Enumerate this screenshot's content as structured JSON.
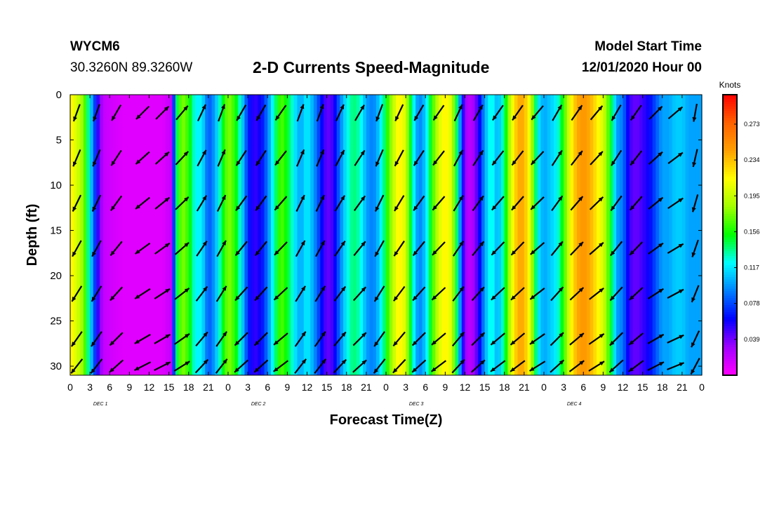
{
  "header": {
    "station_id": "WYCM6",
    "coordinates": "30.3260N 89.3260W",
    "title": "2-D Currents Speed-Magnitude",
    "model_start_label": "Model Start Time",
    "model_start_value": "12/01/2020 Hour 00"
  },
  "chart_data": {
    "type": "heatmap",
    "title": "2-D Currents Speed-Magnitude",
    "xlabel": "Forecast Time(Z)",
    "ylabel": "Depth (ft)",
    "colorbar_label": "Knots",
    "x_tick_labels": [
      "0",
      "3",
      "6",
      "9",
      "12",
      "15",
      "18",
      "21",
      "0",
      "3",
      "6",
      "9",
      "12",
      "15",
      "18",
      "21",
      "0",
      "3",
      "6",
      "9",
      "12",
      "15",
      "18",
      "21",
      "0",
      "3",
      "6",
      "9",
      "12",
      "15",
      "18",
      "21",
      "0"
    ],
    "day_labels": [
      "DEC 1",
      "DEC 2",
      "DEC 3",
      "DEC 4"
    ],
    "y_tick_labels": [
      "0",
      "5",
      "10",
      "15",
      "20",
      "25",
      "30"
    ],
    "y_tick_values": [
      0,
      5,
      10,
      15,
      20,
      25,
      30
    ],
    "ylim": [
      0,
      31
    ],
    "y_inverted": true,
    "x_hours_range": [
      0,
      96
    ],
    "colorbar_ticks": [
      0.039,
      0.078,
      0.117,
      0.156,
      0.195,
      0.234,
      0.273
    ],
    "colorbar_range": [
      0.0,
      0.305
    ],
    "colorbar_colors": [
      "#ff00ff",
      "#a000ff",
      "#0000ff",
      "#0080ff",
      "#00ffff",
      "#00ff00",
      "#a0ff00",
      "#ffff00",
      "#ffa000",
      "#ff6000",
      "#ff0000"
    ],
    "speed_by_hour": [
      [
        0,
        0.22
      ],
      [
        1,
        0.2
      ],
      [
        2,
        0.18
      ],
      [
        3,
        0.12
      ],
      [
        4,
        0.06
      ],
      [
        5,
        0.02
      ],
      [
        6,
        0.015
      ],
      [
        8,
        0.01
      ],
      [
        10,
        0.01
      ],
      [
        12,
        0.01
      ],
      [
        14,
        0.01
      ],
      [
        15.5,
        0.02
      ],
      [
        16,
        0.13
      ],
      [
        17,
        0.18
      ],
      [
        18,
        0.16
      ],
      [
        19,
        0.12
      ],
      [
        20,
        0.12
      ],
      [
        21,
        0.08
      ],
      [
        22,
        0.1
      ],
      [
        23,
        0.14
      ],
      [
        24,
        0.18
      ],
      [
        25,
        0.16
      ],
      [
        26,
        0.12
      ],
      [
        27,
        0.07
      ],
      [
        28,
        0.05
      ],
      [
        29,
        0.06
      ],
      [
        30,
        0.09
      ],
      [
        31,
        0.13
      ],
      [
        32,
        0.17
      ],
      [
        33,
        0.15
      ],
      [
        34,
        0.12
      ],
      [
        35,
        0.1
      ],
      [
        36,
        0.12
      ],
      [
        37,
        0.1
      ],
      [
        38,
        0.07
      ],
      [
        39,
        0.04
      ],
      [
        40,
        0.05
      ],
      [
        41,
        0.09
      ],
      [
        42,
        0.12
      ],
      [
        43,
        0.14
      ],
      [
        44,
        0.13
      ],
      [
        45,
        0.1
      ],
      [
        46,
        0.09
      ],
      [
        47,
        0.11
      ],
      [
        48,
        0.15
      ],
      [
        49,
        0.19
      ],
      [
        50,
        0.22
      ],
      [
        51,
        0.2
      ],
      [
        52,
        0.13
      ],
      [
        53,
        0.09
      ],
      [
        54,
        0.11
      ],
      [
        55,
        0.16
      ],
      [
        56,
        0.2
      ],
      [
        57,
        0.22
      ],
      [
        58,
        0.2
      ],
      [
        59,
        0.12
      ],
      [
        60,
        0.03
      ],
      [
        61,
        0.02
      ],
      [
        62,
        0.05
      ],
      [
        63,
        0.1
      ],
      [
        64,
        0.13
      ],
      [
        65,
        0.1
      ],
      [
        66,
        0.14
      ],
      [
        67,
        0.2
      ],
      [
        68,
        0.24
      ],
      [
        69,
        0.24
      ],
      [
        70,
        0.2
      ],
      [
        71,
        0.12
      ],
      [
        72,
        0.1
      ],
      [
        73,
        0.11
      ],
      [
        74,
        0.12
      ],
      [
        75,
        0.16
      ],
      [
        76,
        0.21
      ],
      [
        77,
        0.24
      ],
      [
        78,
        0.25
      ],
      [
        79,
        0.24
      ],
      [
        80,
        0.22
      ],
      [
        81,
        0.2
      ],
      [
        82,
        0.16
      ],
      [
        83,
        0.1
      ],
      [
        84,
        0.09
      ],
      [
        85,
        0.05
      ],
      [
        86,
        0.04
      ],
      [
        87,
        0.05
      ],
      [
        88,
        0.06
      ],
      [
        89,
        0.08
      ],
      [
        90,
        0.1
      ],
      [
        91,
        0.1
      ],
      [
        92,
        0.11
      ],
      [
        93,
        0.11
      ],
      [
        94,
        0.1
      ],
      [
        95,
        0.1
      ],
      [
        96,
        0.1
      ]
    ],
    "vector_columns_hours": [
      1,
      4,
      7,
      11,
      14,
      17,
      20,
      23,
      26,
      29,
      32,
      35,
      38,
      41,
      44,
      47,
      50,
      53,
      56,
      59,
      62,
      65,
      68,
      71,
      74,
      77,
      80,
      83,
      86,
      89,
      92,
      95
    ],
    "vector_rows_ft": [
      2,
      7,
      12,
      17,
      22,
      27,
      30
    ],
    "vector_direction_deg": [
      200,
      200,
      210,
      225,
      45,
      40,
      25,
      20,
      210,
      210,
      215,
      20,
      20,
      25,
      30,
      200,
      205,
      210,
      215,
      25,
      30,
      215,
      215,
      220,
      30,
      35,
      40,
      210,
      215,
      45,
      50,
      190
    ]
  },
  "colors": {
    "axis": "#000000",
    "background": "#ffffff",
    "vector": "#000000"
  }
}
